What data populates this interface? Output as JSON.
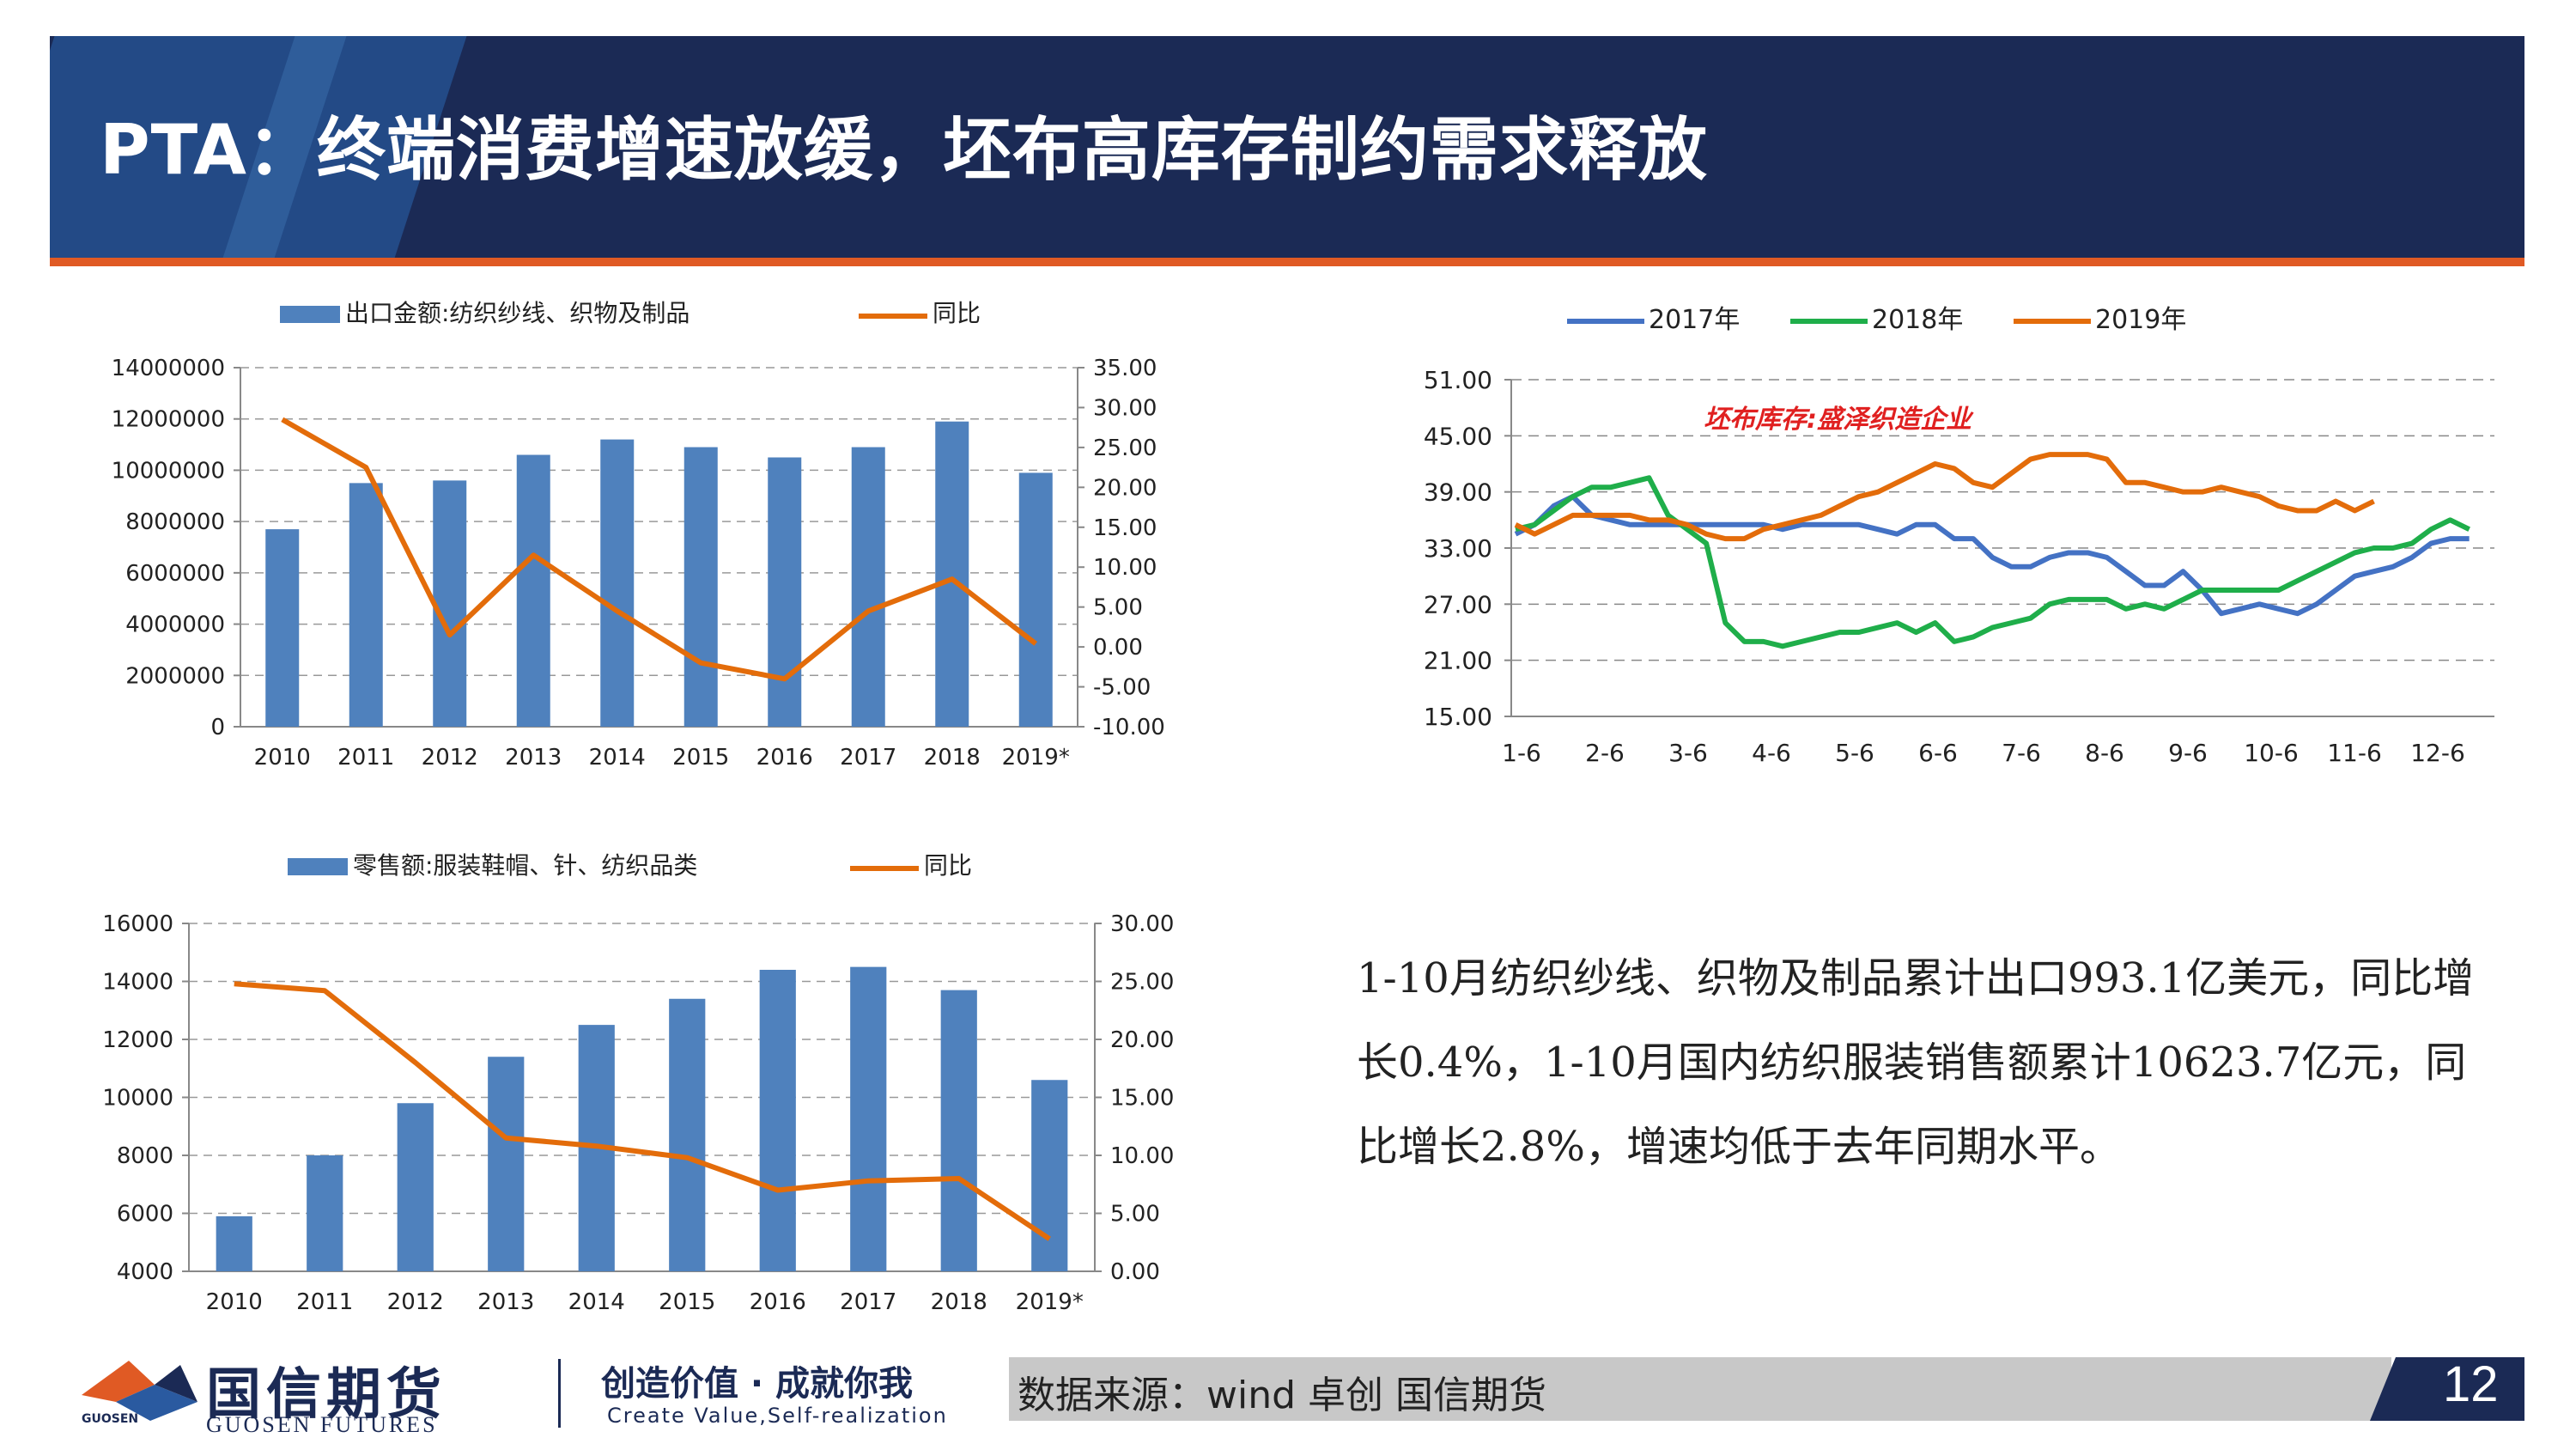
{
  "title": "PTA：终端消费增速放缓，坯布高库存制约需求释放",
  "colors": {
    "navy": "#1b2a55",
    "accent_orange": "#e05a24",
    "bar_blue": "#4f81bd",
    "line_orange": "#e36c0a",
    "line_green": "#1fae4a"
  },
  "chart1": {
    "legend_bar": "出口金额:纺织纱线、织物及制品",
    "legend_line": "同比",
    "left_ticks": [
      "14000000",
      "12000000",
      "10000000",
      "8000000",
      "6000000",
      "4000000",
      "2000000",
      "0"
    ],
    "right_ticks": [
      "35.00",
      "30.00",
      "25.00",
      "20.00",
      "15.00",
      "10.00",
      "5.00",
      "0.00",
      "-5.00",
      "-10.00"
    ],
    "categories": [
      "2010",
      "2011",
      "2012",
      "2013",
      "2014",
      "2015",
      "2016",
      "2017",
      "2018",
      "2019*"
    ]
  },
  "chart2": {
    "legend": [
      "2017年",
      "2018年",
      "2019年"
    ],
    "annotation": "坯布库存:盛泽织造企业",
    "y_ticks": [
      "51.00",
      "45.00",
      "39.00",
      "33.00",
      "27.00",
      "21.00",
      "15.00"
    ],
    "x_ticks": [
      "1-6",
      "2-6",
      "3-6",
      "4-6",
      "5-6",
      "6-6",
      "7-6",
      "8-6",
      "9-6",
      "10-6",
      "11-6",
      "12-6"
    ]
  },
  "chart3": {
    "legend_bar": "零售额:服装鞋帽、针、纺织品类",
    "legend_line": "同比",
    "left_ticks": [
      "16000",
      "14000",
      "12000",
      "10000",
      "8000",
      "6000",
      "4000"
    ],
    "right_ticks": [
      "30.00",
      "25.00",
      "20.00",
      "15.00",
      "10.00",
      "5.00",
      "0.00"
    ],
    "categories": [
      "2010",
      "2011",
      "2012",
      "2013",
      "2014",
      "2015",
      "2016",
      "2017",
      "2018",
      "2019*"
    ]
  },
  "chart_data": [
    {
      "type": "bar",
      "categories": [
        "2010",
        "2011",
        "2012",
        "2013",
        "2014",
        "2015",
        "2016",
        "2017",
        "2018",
        "2019*"
      ],
      "series": [
        {
          "name": "出口金额:纺织纱线、织物及制品",
          "axis": "left",
          "values": [
            7700000,
            9500000,
            9600000,
            10600000,
            11200000,
            10900000,
            10500000,
            10900000,
            11900000,
            9900000
          ]
        },
        {
          "name": "同比",
          "axis": "right",
          "type": "line",
          "values": [
            28.5,
            22.5,
            1.5,
            11.5,
            4.5,
            -2.0,
            -4.0,
            4.5,
            8.5,
            0.4
          ]
        }
      ],
      "ylim_left": [
        0,
        14000000
      ],
      "ylim_right": [
        -10,
        35
      ]
    },
    {
      "type": "line",
      "x_labels": [
        "1-6",
        "2-6",
        "3-6",
        "4-6",
        "5-6",
        "6-6",
        "7-6",
        "8-6",
        "9-6",
        "10-6",
        "11-6",
        "12-6"
      ],
      "ylim": [
        15,
        51
      ],
      "series": [
        {
          "name": "2017年",
          "values": [
            34.5,
            35.5,
            37.5,
            38.5,
            36.5,
            36.0,
            35.5,
            35.5,
            35.5,
            35.5,
            35.5,
            35.5,
            35.5,
            35.5,
            35.0,
            35.5,
            35.5,
            35.5,
            35.5,
            35.0,
            34.5,
            35.5,
            35.5,
            34.0,
            34.0,
            32.0,
            31.0,
            31.0,
            32.0,
            32.5,
            32.5,
            32.0,
            30.5,
            29.0,
            29.0,
            30.5,
            28.5,
            26.0,
            26.5,
            27.0,
            26.5,
            26.0,
            27.0,
            28.5,
            30.0,
            30.5,
            31.0,
            32.0,
            33.5,
            34.0,
            34.0
          ]
        },
        {
          "name": "2018年",
          "values": [
            35.0,
            35.5,
            37.0,
            38.5,
            39.5,
            39.5,
            40.0,
            40.5,
            36.5,
            35.0,
            33.5,
            25.0,
            23.0,
            23.0,
            22.5,
            23.0,
            23.5,
            24.0,
            24.0,
            24.5,
            25.0,
            24.0,
            25.0,
            23.0,
            23.5,
            24.5,
            25.0,
            25.5,
            27.0,
            27.5,
            27.5,
            27.5,
            26.5,
            27.0,
            26.5,
            27.5,
            28.5,
            28.5,
            28.5,
            28.5,
            28.5,
            29.5,
            30.5,
            31.5,
            32.5,
            33.0,
            33.0,
            33.5,
            35.0,
            36.0,
            35.0
          ]
        },
        {
          "name": "2019年",
          "values": [
            35.5,
            34.5,
            35.5,
            36.5,
            36.5,
            36.5,
            36.5,
            36.0,
            36.0,
            35.5,
            34.5,
            34.0,
            34.0,
            35.0,
            35.5,
            36.0,
            36.5,
            37.5,
            38.5,
            39.0,
            40.0,
            41.0,
            42.0,
            41.5,
            40.0,
            39.5,
            41.0,
            42.5,
            43.0,
            43.0,
            43.0,
            42.5,
            40.0,
            40.0,
            39.5,
            39.0,
            39.0,
            39.5,
            39.0,
            38.5,
            37.5,
            37.0,
            37.0,
            38.0,
            37.0,
            38.0,
            null,
            null,
            null,
            null,
            null
          ]
        }
      ]
    },
    {
      "type": "bar",
      "categories": [
        "2010",
        "2011",
        "2012",
        "2013",
        "2014",
        "2015",
        "2016",
        "2017",
        "2018",
        "2019*"
      ],
      "series": [
        {
          "name": "零售额:服装鞋帽、针、纺织品类",
          "axis": "left",
          "values": [
            5900,
            8000,
            9800,
            11400,
            12500,
            13400,
            14400,
            14500,
            13700,
            10600
          ]
        },
        {
          "name": "同比",
          "axis": "right",
          "type": "line",
          "values": [
            24.8,
            24.2,
            18.0,
            11.5,
            10.8,
            9.8,
            7.0,
            7.8,
            8.0,
            2.8
          ]
        }
      ],
      "ylim_left": [
        4000,
        16000
      ],
      "ylim_right": [
        0,
        30
      ]
    }
  ],
  "summary": "1-10月纺织纱线、织物及制品累计出口993.1亿美元，同比增长0.4%，1-10月国内纺织服装销售额累计10623.7亿元，同比增长2.8%，增速均低于去年同期水平。",
  "footer": {
    "logo_cn": "国信期货",
    "logo_en": "GUOSEN FUTURES",
    "logo_small": "GUOSEN",
    "slogan": "创造价值 · 成就你我",
    "slogan_en": "Create Value,Self-realization",
    "source": "数据来源：wind  卓创  国信期货",
    "page": "12"
  }
}
